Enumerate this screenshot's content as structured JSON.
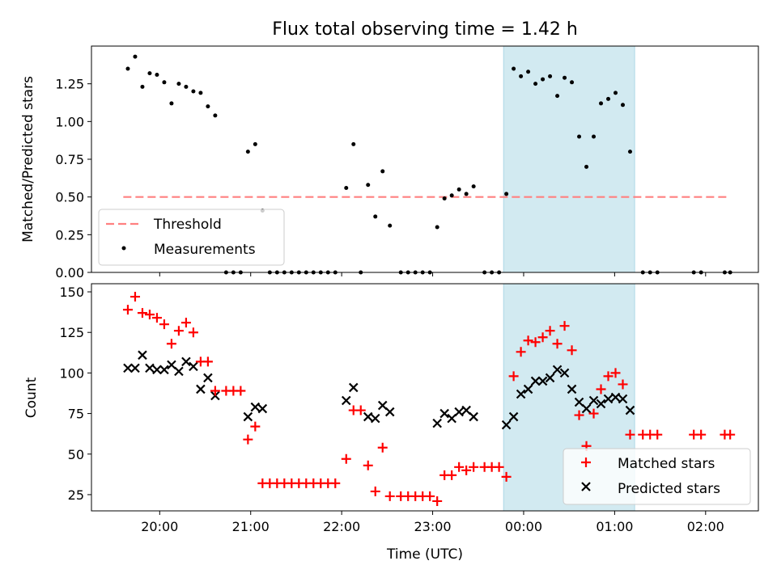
{
  "chart_data": [
    {
      "type": "scatter",
      "title": "Flux total observing time = 1.42 h",
      "xlabel": "",
      "ylabel": "Matched/Predicted stars",
      "x_unit": "time (UTC, hours; values above 24 are after midnight)",
      "xlim": [
        19.25,
        26.58
      ],
      "ylim": [
        0,
        1.5
      ],
      "yticks": [
        0.0,
        0.25,
        0.5,
        0.75,
        1.0,
        1.25
      ],
      "ytick_labels": [
        "0.00",
        "0.25",
        "0.50",
        "0.75",
        "1.00",
        "1.25"
      ],
      "xticks": [
        20,
        21,
        22,
        23,
        24,
        25,
        26
      ],
      "xtick_labels": [],
      "legend": {
        "position": "lower-left",
        "entries": [
          "Threshold",
          "Measurements"
        ]
      },
      "shaded_region": {
        "x": [
          23.78,
          25.22
        ],
        "color": "#add8e6"
      },
      "threshold": {
        "name": "Threshold",
        "y": 0.5,
        "x": [
          19.6,
          26.25
        ],
        "color": "#ff8080",
        "style": "dashed"
      },
      "series": [
        {
          "name": "Measurements",
          "color": "#000000",
          "points": [
            [
              19.65,
              1.35
            ],
            [
              19.73,
              1.43
            ],
            [
              19.81,
              1.23
            ],
            [
              19.89,
              1.32
            ],
            [
              19.97,
              1.31
            ],
            [
              20.05,
              1.26
            ],
            [
              20.13,
              1.12
            ],
            [
              20.21,
              1.25
            ],
            [
              20.29,
              1.23
            ],
            [
              20.37,
              1.2
            ],
            [
              20.45,
              1.19
            ],
            [
              20.53,
              1.1
            ],
            [
              20.61,
              1.04
            ],
            [
              20.73,
              0.0
            ],
            [
              20.81,
              0.0
            ],
            [
              20.89,
              0.0
            ],
            [
              20.97,
              0.8
            ],
            [
              21.05,
              0.85
            ],
            [
              21.13,
              0.41
            ],
            [
              21.21,
              0.0
            ],
            [
              21.29,
              0.0
            ],
            [
              21.37,
              0.0
            ],
            [
              21.45,
              0.0
            ],
            [
              21.53,
              0.0
            ],
            [
              21.61,
              0.0
            ],
            [
              21.69,
              0.0
            ],
            [
              21.77,
              0.0
            ],
            [
              21.85,
              0.0
            ],
            [
              21.93,
              0.0
            ],
            [
              22.05,
              0.56
            ],
            [
              22.13,
              0.85
            ],
            [
              22.21,
              0.0
            ],
            [
              22.29,
              0.58
            ],
            [
              22.37,
              0.37
            ],
            [
              22.45,
              0.67
            ],
            [
              22.53,
              0.31
            ],
            [
              22.65,
              0.0
            ],
            [
              22.73,
              0.0
            ],
            [
              22.81,
              0.0
            ],
            [
              22.89,
              0.0
            ],
            [
              22.97,
              0.0
            ],
            [
              23.05,
              0.3
            ],
            [
              23.13,
              0.49
            ],
            [
              23.21,
              0.51
            ],
            [
              23.29,
              0.55
            ],
            [
              23.37,
              0.52
            ],
            [
              23.45,
              0.57
            ],
            [
              23.57,
              0.0
            ],
            [
              23.65,
              0.0
            ],
            [
              23.73,
              0.0
            ],
            [
              23.81,
              0.52
            ],
            [
              23.89,
              1.35
            ],
            [
              23.97,
              1.3
            ],
            [
              24.05,
              1.33
            ],
            [
              24.13,
              1.25
            ],
            [
              24.21,
              1.28
            ],
            [
              24.29,
              1.3
            ],
            [
              24.37,
              1.17
            ],
            [
              24.45,
              1.29
            ],
            [
              24.53,
              1.26
            ],
            [
              24.61,
              0.9
            ],
            [
              24.69,
              0.7
            ],
            [
              24.77,
              0.9
            ],
            [
              24.85,
              1.12
            ],
            [
              24.93,
              1.15
            ],
            [
              25.01,
              1.19
            ],
            [
              25.09,
              1.11
            ],
            [
              25.17,
              0.8
            ],
            [
              25.31,
              0.0
            ],
            [
              25.39,
              0.0
            ],
            [
              25.47,
              0.0
            ],
            [
              25.87,
              0.0
            ],
            [
              25.95,
              0.0
            ],
            [
              26.21,
              0.0
            ],
            [
              26.27,
              0.0
            ]
          ]
        }
      ]
    },
    {
      "type": "scatter",
      "title": "",
      "xlabel": "Time (UTC)",
      "ylabel": "Count",
      "x_unit": "time (UTC, hours; values above 24 are after midnight)",
      "xlim": [
        19.25,
        26.58
      ],
      "ylim": [
        15,
        155
      ],
      "yticks": [
        25,
        50,
        75,
        100,
        125,
        150
      ],
      "ytick_labels": [
        "25",
        "50",
        "75",
        "100",
        "125",
        "150"
      ],
      "xticks": [
        20,
        21,
        22,
        23,
        24,
        25,
        26
      ],
      "xtick_labels": [
        "20:00",
        "21:00",
        "22:00",
        "23:00",
        "00:00",
        "01:00",
        "02:00"
      ],
      "legend": {
        "position": "lower-right",
        "entries": [
          "Matched stars",
          "Predicted stars"
        ]
      },
      "shaded_region": {
        "x": [
          23.78,
          25.22
        ],
        "color": "#add8e6"
      },
      "series": [
        {
          "name": "Matched stars",
          "color": "#ff0000",
          "marker": "plus",
          "points": [
            [
              19.65,
              139
            ],
            [
              19.73,
              147
            ],
            [
              19.81,
              137
            ],
            [
              19.89,
              136
            ],
            [
              19.97,
              134
            ],
            [
              20.05,
              130
            ],
            [
              20.13,
              118
            ],
            [
              20.21,
              126
            ],
            [
              20.29,
              131
            ],
            [
              20.37,
              125
            ],
            [
              20.45,
              107
            ],
            [
              20.53,
              107
            ],
            [
              20.61,
              89
            ],
            [
              20.73,
              89
            ],
            [
              20.81,
              89
            ],
            [
              20.89,
              89
            ],
            [
              20.97,
              59
            ],
            [
              21.05,
              67
            ],
            [
              21.13,
              32
            ],
            [
              21.21,
              32
            ],
            [
              21.29,
              32
            ],
            [
              21.37,
              32
            ],
            [
              21.45,
              32
            ],
            [
              21.53,
              32
            ],
            [
              21.61,
              32
            ],
            [
              21.69,
              32
            ],
            [
              21.77,
              32
            ],
            [
              21.85,
              32
            ],
            [
              21.93,
              32
            ],
            [
              22.05,
              47
            ],
            [
              22.13,
              77
            ],
            [
              22.21,
              77
            ],
            [
              22.29,
              43
            ],
            [
              22.37,
              27
            ],
            [
              22.45,
              54
            ],
            [
              22.53,
              24
            ],
            [
              22.65,
              24
            ],
            [
              22.73,
              24
            ],
            [
              22.81,
              24
            ],
            [
              22.89,
              24
            ],
            [
              22.97,
              24
            ],
            [
              23.05,
              21
            ],
            [
              23.13,
              37
            ],
            [
              23.21,
              37
            ],
            [
              23.29,
              42
            ],
            [
              23.37,
              40
            ],
            [
              23.45,
              42
            ],
            [
              23.57,
              42
            ],
            [
              23.65,
              42
            ],
            [
              23.73,
              42
            ],
            [
              23.81,
              36
            ],
            [
              23.89,
              98
            ],
            [
              23.97,
              113
            ],
            [
              24.05,
              120
            ],
            [
              24.13,
              119
            ],
            [
              24.21,
              122
            ],
            [
              24.29,
              126
            ],
            [
              24.37,
              118
            ],
            [
              24.45,
              129
            ],
            [
              24.53,
              114
            ],
            [
              24.61,
              74
            ],
            [
              24.69,
              55
            ],
            [
              24.77,
              75
            ],
            [
              24.85,
              90
            ],
            [
              24.93,
              98
            ],
            [
              25.01,
              100
            ],
            [
              25.09,
              93
            ],
            [
              25.17,
              62
            ],
            [
              25.31,
              62
            ],
            [
              25.39,
              62
            ],
            [
              25.47,
              62
            ],
            [
              25.87,
              62
            ],
            [
              25.95,
              62
            ],
            [
              26.21,
              62
            ],
            [
              26.27,
              62
            ]
          ]
        },
        {
          "name": "Predicted stars",
          "color": "#000000",
          "marker": "x",
          "points": [
            [
              19.65,
              103
            ],
            [
              19.73,
              103
            ],
            [
              19.81,
              111
            ],
            [
              19.89,
              103
            ],
            [
              19.97,
              102
            ],
            [
              20.05,
              102
            ],
            [
              20.13,
              105
            ],
            [
              20.21,
              101
            ],
            [
              20.29,
              107
            ],
            [
              20.37,
              104
            ],
            [
              20.45,
              90
            ],
            [
              20.53,
              97
            ],
            [
              20.61,
              86
            ],
            [
              20.97,
              73
            ],
            [
              21.05,
              79
            ],
            [
              21.13,
              78
            ],
            [
              22.05,
              83
            ],
            [
              22.13,
              91
            ],
            [
              22.29,
              73
            ],
            [
              22.37,
              72
            ],
            [
              22.45,
              80
            ],
            [
              22.53,
              76
            ],
            [
              23.05,
              69
            ],
            [
              23.13,
              75
            ],
            [
              23.21,
              72
            ],
            [
              23.29,
              76
            ],
            [
              23.37,
              77
            ],
            [
              23.45,
              73
            ],
            [
              23.81,
              68
            ],
            [
              23.89,
              73
            ],
            [
              23.97,
              87
            ],
            [
              24.05,
              90
            ],
            [
              24.13,
              95
            ],
            [
              24.21,
              95
            ],
            [
              24.29,
              97
            ],
            [
              24.37,
              102
            ],
            [
              24.45,
              100
            ],
            [
              24.53,
              90
            ],
            [
              24.61,
              82
            ],
            [
              24.69,
              78
            ],
            [
              24.77,
              83
            ],
            [
              24.85,
              81
            ],
            [
              24.93,
              84
            ],
            [
              25.01,
              85
            ],
            [
              25.09,
              84
            ],
            [
              25.17,
              77
            ]
          ]
        }
      ]
    }
  ]
}
